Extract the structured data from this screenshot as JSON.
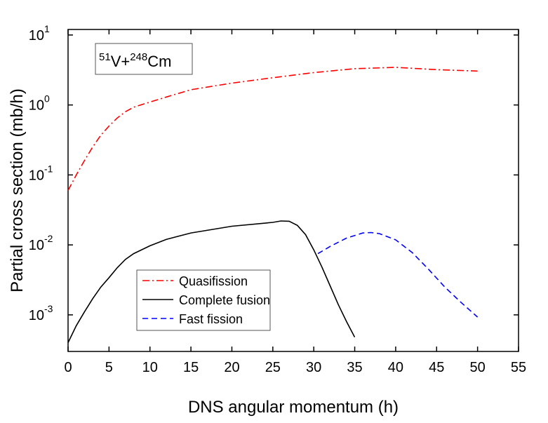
{
  "chart_data": {
    "type": "line",
    "xlabel": "DNS angular momentum (h)",
    "ylabel": "Partial cross section (mb/h)",
    "annotation": [
      {
        "text": "51",
        "sup": true
      },
      {
        "text": "V+",
        "sup": false
      },
      {
        "text": "248",
        "sup": true
      },
      {
        "text": "Cm",
        "sup": false
      }
    ],
    "xlim": [
      0,
      55
    ],
    "xticks": [
      0,
      5,
      10,
      15,
      20,
      25,
      30,
      35,
      40,
      45,
      50,
      55
    ],
    "ylim": [
      0.0003,
      12
    ],
    "log_y": true,
    "yticks": [
      {
        "value": 10,
        "label": "10",
        "exponent": "1"
      },
      {
        "value": 1,
        "label": "10",
        "exponent": "0"
      },
      {
        "value": 0.1,
        "label": "10",
        "exponent": "-1"
      },
      {
        "value": 0.01,
        "label": "10",
        "exponent": "-2"
      },
      {
        "value": 0.001,
        "label": "10",
        "exponent": "-3"
      }
    ],
    "legend": "lower-left",
    "series": [
      {
        "name": "Quasifission",
        "color": "#ff0000",
        "dash": "dashdot",
        "x": [
          0,
          1,
          2,
          3,
          4,
          5,
          6,
          7,
          8,
          10,
          12,
          15,
          20,
          25,
          30,
          35,
          40,
          45,
          50
        ],
        "values": [
          0.06,
          0.1,
          0.16,
          0.25,
          0.37,
          0.5,
          0.65,
          0.8,
          0.93,
          1.1,
          1.3,
          1.65,
          2.05,
          2.45,
          2.9,
          3.3,
          3.45,
          3.2,
          3.05
        ]
      },
      {
        "name": "Complete fusion",
        "color": "#000000",
        "dash": "solid",
        "x": [
          0,
          1,
          2,
          3,
          4,
          5,
          6,
          7,
          8,
          10,
          12,
          15,
          20,
          25,
          26,
          27,
          28,
          29,
          30,
          31,
          32,
          33,
          34,
          35
        ],
        "values": [
          0.0004,
          0.0007,
          0.0011,
          0.0017,
          0.0025,
          0.0034,
          0.0047,
          0.0062,
          0.0075,
          0.0097,
          0.012,
          0.0148,
          0.0185,
          0.021,
          0.022,
          0.0218,
          0.019,
          0.014,
          0.0085,
          0.0048,
          0.0026,
          0.0014,
          0.0008,
          0.00048
        ]
      },
      {
        "name": "Fast fission",
        "color": "#0000ff",
        "dash": "dashed",
        "x": [
          30.5,
          32,
          34,
          36,
          37,
          38,
          40,
          42,
          44,
          46,
          48,
          50
        ],
        "values": [
          0.0075,
          0.0095,
          0.0125,
          0.0148,
          0.015,
          0.0145,
          0.0118,
          0.0078,
          0.0045,
          0.0025,
          0.0015,
          0.00093
        ]
      }
    ]
  }
}
